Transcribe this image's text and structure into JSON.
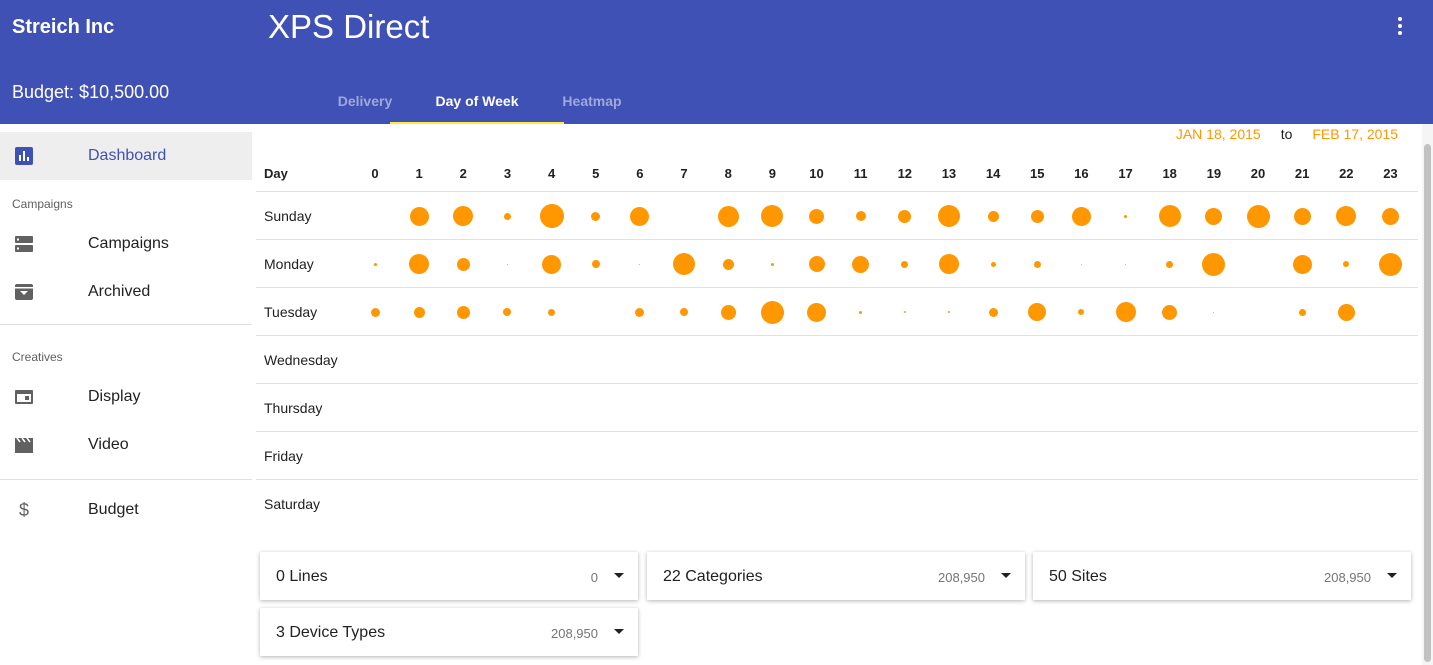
{
  "header": {
    "company": "Streich Inc",
    "app_title": "XPS Direct",
    "budget": "Budget: $10,500.00",
    "tabs": [
      "Delivery",
      "Day of Week",
      "Heatmap"
    ],
    "active_tab": "Day of Week",
    "menu_icon": "more-vert-icon"
  },
  "sidebar": {
    "dashboard": {
      "label": "Dashboard",
      "icon": "chart-icon"
    },
    "campaigns_section": "Campaigns",
    "campaigns": {
      "label": "Campaigns",
      "icon": "list-icon"
    },
    "archived": {
      "label": "Archived",
      "icon": "archive-icon"
    },
    "creatives_section": "Creatives",
    "display": {
      "label": "Display",
      "icon": "display-icon"
    },
    "video": {
      "label": "Video",
      "icon": "video-icon"
    },
    "budget": {
      "label": "Budget",
      "icon": "dollar-icon"
    }
  },
  "date_range": {
    "start": "JAN 18, 2015",
    "to": "to",
    "end": "FEB 17, 2015"
  },
  "chart_data": {
    "type": "bubble-grid",
    "row_header": "Day",
    "hours": [
      "0",
      "1",
      "2",
      "3",
      "4",
      "5",
      "6",
      "7",
      "8",
      "9",
      "10",
      "11",
      "12",
      "13",
      "14",
      "15",
      "16",
      "17",
      "18",
      "19",
      "20",
      "21",
      "22",
      "23"
    ],
    "days": [
      "Sunday",
      "Monday",
      "Tuesday",
      "Wednesday",
      "Thursday",
      "Friday",
      "Saturday"
    ],
    "bubble_color": "#ff9800",
    "sizes": [
      [
        0,
        19,
        20,
        7,
        24,
        9,
        19,
        0,
        21,
        22,
        15,
        10,
        13,
        22,
        11,
        13,
        19,
        3,
        22,
        17,
        23,
        17,
        20,
        17
      ],
      [
        3,
        20,
        13,
        1,
        19,
        8,
        1,
        22,
        11,
        3,
        16,
        17,
        7,
        20,
        5,
        7,
        1,
        1,
        7,
        23,
        0,
        19,
        6,
        23
      ],
      [
        9,
        11,
        13,
        8,
        7,
        0,
        9,
        8,
        15,
        23,
        19,
        3,
        2,
        2,
        9,
        18,
        6,
        20,
        15,
        1,
        0,
        7,
        17,
        0
      ],
      [
        0,
        0,
        0,
        0,
        0,
        0,
        0,
        0,
        0,
        0,
        0,
        0,
        0,
        0,
        0,
        0,
        0,
        0,
        0,
        0,
        0,
        0,
        0,
        0
      ],
      [
        0,
        0,
        0,
        0,
        0,
        0,
        0,
        0,
        0,
        0,
        0,
        0,
        0,
        0,
        0,
        0,
        0,
        0,
        0,
        0,
        0,
        0,
        0,
        0
      ],
      [
        0,
        0,
        0,
        0,
        0,
        0,
        0,
        0,
        0,
        0,
        0,
        0,
        0,
        0,
        0,
        0,
        0,
        0,
        0,
        0,
        0,
        0,
        0,
        0
      ],
      [
        0,
        0,
        0,
        0,
        0,
        0,
        0,
        0,
        0,
        0,
        0,
        0,
        0,
        0,
        0,
        0,
        0,
        0,
        0,
        0,
        0,
        0,
        0,
        0
      ]
    ]
  },
  "filters": [
    {
      "title": "0 Lines",
      "count": "0"
    },
    {
      "title": "22 Categories",
      "count": "208,950"
    },
    {
      "title": "50 Sites",
      "count": "208,950"
    },
    {
      "title": "3 Device Types",
      "count": "208,950"
    }
  ]
}
